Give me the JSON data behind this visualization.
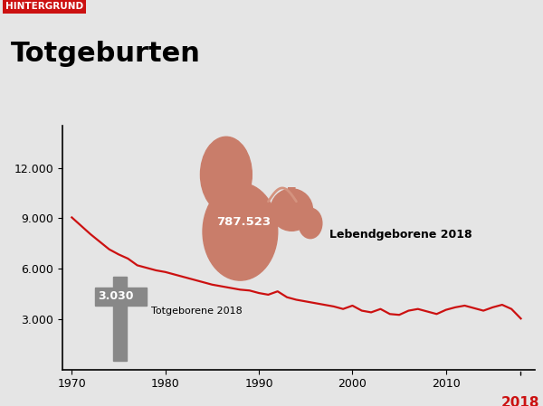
{
  "title": "Totgeburten",
  "header_label": "HINTERGRUND",
  "header_bg": "#cc1111",
  "background_color": "#e5e5e5",
  "line_color": "#cc1111",
  "line_width": 1.6,
  "cross_color": "#888888",
  "annotation_3030": "3.030",
  "annotation_totgeborene": "Totgeborene 2018",
  "annotation_787523": "787.523",
  "annotation_lebend": "Lebendgeborene 2018",
  "year_2018_color": "#cc1111",
  "ytick_labels": [
    "3.000",
    "6.000",
    "9.000",
    "12.000"
  ],
  "ytick_values": [
    3000,
    6000,
    9000,
    12000
  ],
  "xlim": [
    1969.0,
    2019.5
  ],
  "ylim": [
    0,
    14500
  ],
  "xticks": [
    1970,
    1980,
    1990,
    2000,
    2010
  ],
  "years": [
    1970,
    1971,
    1972,
    1973,
    1974,
    1975,
    1976,
    1977,
    1978,
    1979,
    1980,
    1981,
    1982,
    1983,
    1984,
    1985,
    1986,
    1987,
    1988,
    1989,
    1990,
    1991,
    1992,
    1993,
    1994,
    1995,
    1996,
    1997,
    1998,
    1999,
    2000,
    2001,
    2002,
    2003,
    2004,
    2005,
    2006,
    2007,
    2008,
    2009,
    2010,
    2011,
    2012,
    2013,
    2014,
    2015,
    2016,
    2017,
    2018
  ],
  "values": [
    9050,
    8550,
    8050,
    7600,
    7150,
    6850,
    6600,
    6200,
    6050,
    5900,
    5800,
    5650,
    5500,
    5350,
    5200,
    5050,
    4950,
    4850,
    4750,
    4700,
    4550,
    4450,
    4650,
    4300,
    4150,
    4050,
    3950,
    3850,
    3750,
    3600,
    3800,
    3500,
    3400,
    3600,
    3300,
    3250,
    3500,
    3600,
    3450,
    3300,
    3550,
    3700,
    3800,
    3650,
    3500,
    3700,
    3850,
    3600,
    3030
  ]
}
